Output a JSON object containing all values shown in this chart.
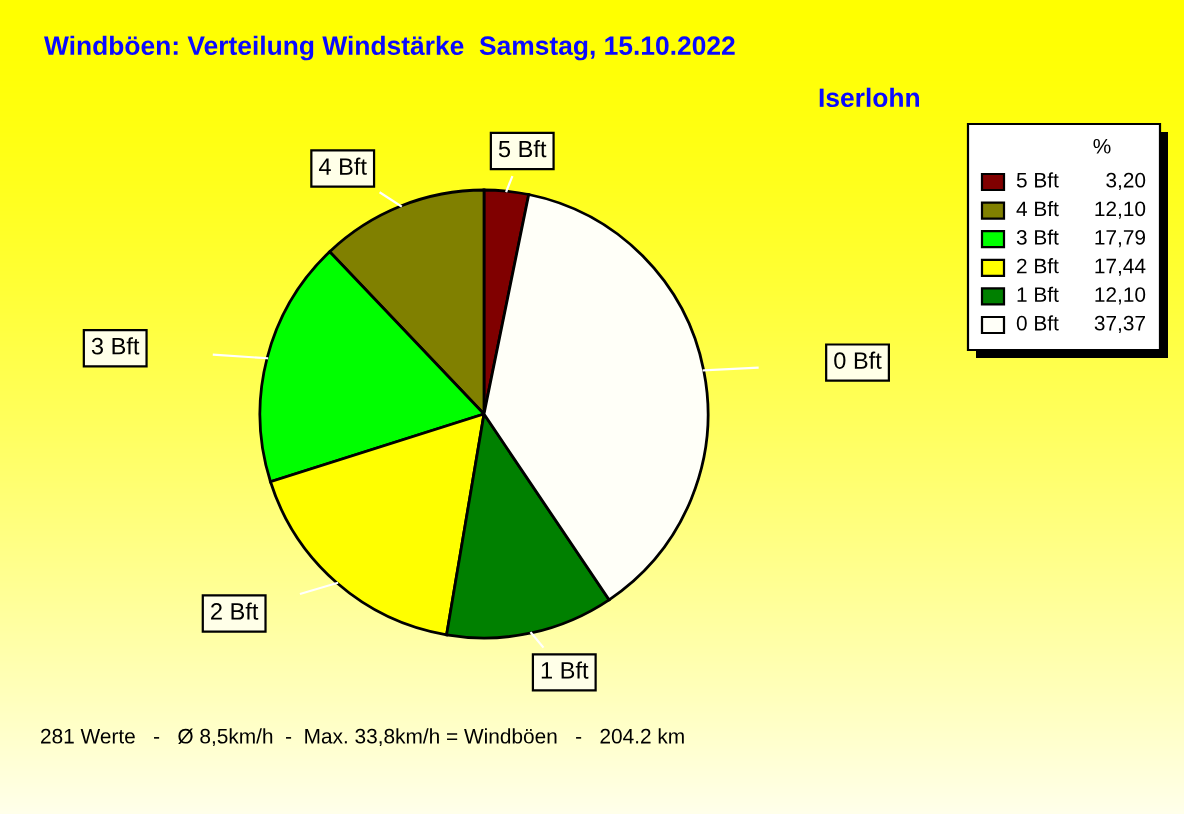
{
  "chart_data": {
    "type": "pie",
    "title": "Windböen: Verteilung Windstärke  Samstag, 15.10.2022",
    "subtitle": "Iserlohn",
    "categories": [
      "5 Bft",
      "4 Bft",
      "3 Bft",
      "2 Bft",
      "1 Bft",
      "0 Bft"
    ],
    "values": [
      3.2,
      12.1,
      17.79,
      17.44,
      12.1,
      37.37
    ],
    "value_labels": [
      "3,20",
      "12,10",
      "17,79",
      "17,44",
      "12,10",
      "37,37"
    ],
    "colors": [
      "#800000",
      "#808000",
      "#00ff00",
      "#ffff00",
      "#008000",
      "#fffff8"
    ],
    "legend": "top right",
    "legend_title": "%",
    "annotations": [
      "281 Werte   -   Ø 8,5km/h  -  Max. 33,8km/h = Windböen   -   204.2 km"
    ]
  }
}
